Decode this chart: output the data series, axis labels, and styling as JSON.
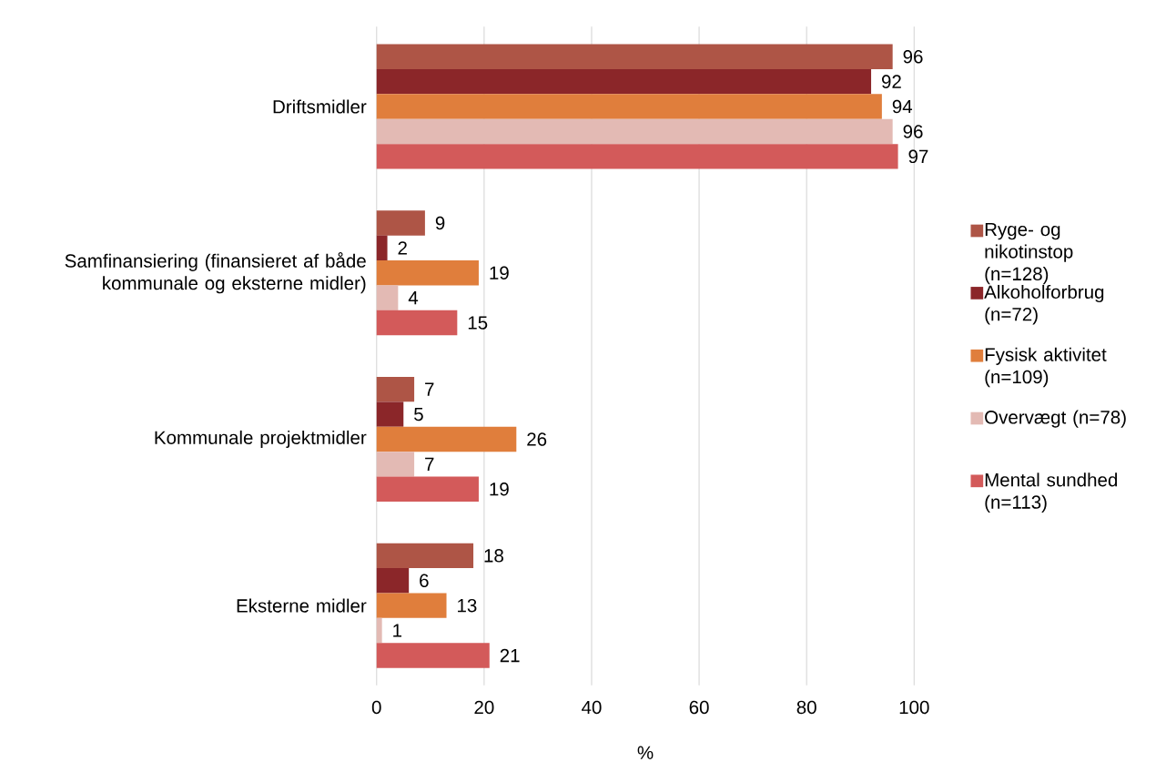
{
  "chart_data": {
    "type": "bar",
    "orientation": "horizontal",
    "xlabel": "%",
    "categories": [
      "Driftsmidler",
      "Samfinansiering (finansieret af både kommunale og eksterne midler)",
      "Kommunale projektmidler",
      "Eksterne midler"
    ],
    "series": [
      {
        "name": "Ryge- og nikotinstop (n=128)",
        "color": "#ae5546",
        "values": [
          96,
          9,
          7,
          18
        ]
      },
      {
        "name": "Alkoholforbrug (n=72)",
        "color": "#8b2629",
        "values": [
          92,
          2,
          5,
          6
        ]
      },
      {
        "name": "Fysisk aktivitet (n=109)",
        "color": "#e07e3c",
        "values": [
          94,
          19,
          26,
          13
        ]
      },
      {
        "name": "Overvægt (n=78)",
        "color": "#e3bab4",
        "values": [
          96,
          4,
          7,
          1
        ]
      },
      {
        "name": "Mental sundhed (n=113)",
        "color": "#d35a5a",
        "values": [
          97,
          15,
          19,
          21
        ]
      }
    ],
    "xlim": [
      0,
      100
    ],
    "xticks": [
      0,
      20,
      40,
      60,
      80,
      100
    ],
    "grid": "x",
    "legend": "right",
    "data_labels": true
  }
}
